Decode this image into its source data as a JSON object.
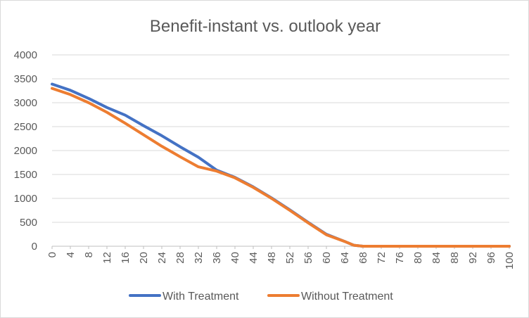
{
  "chart_data": {
    "type": "line",
    "title": "Benefit-instant vs. outlook year",
    "xlabel": "",
    "ylabel": "",
    "ylim": [
      0,
      4000
    ],
    "xlim": [
      0,
      100
    ],
    "y_ticks": [
      0,
      500,
      1000,
      1500,
      2000,
      2500,
      3000,
      3500,
      4000
    ],
    "x_tick_labels": [
      "0",
      "4",
      "8",
      "12",
      "16",
      "20",
      "24",
      "28",
      "32",
      "36",
      "40",
      "44",
      "48",
      "52",
      "56",
      "60",
      "64",
      "68",
      "72",
      "76",
      "80",
      "84",
      "88",
      "92",
      "96",
      "100"
    ],
    "grid": "horizontal",
    "legend": "bottom",
    "series": [
      {
        "name": "With Treatment",
        "color": "#4472C4",
        "points": [
          [
            0,
            3390
          ],
          [
            4,
            3260
          ],
          [
            8,
            3090
          ],
          [
            12,
            2900
          ],
          [
            16,
            2740
          ],
          [
            20,
            2520
          ],
          [
            24,
            2310
          ],
          [
            28,
            2080
          ],
          [
            32,
            1860
          ],
          [
            36,
            1590
          ],
          [
            40,
            1440
          ],
          [
            44,
            1240
          ],
          [
            48,
            1010
          ],
          [
            52,
            760
          ],
          [
            56,
            500
          ],
          [
            60,
            250
          ],
          [
            64,
            100
          ],
          [
            66,
            20
          ],
          [
            68,
            0
          ],
          [
            72,
            0
          ],
          [
            76,
            0
          ],
          [
            80,
            0
          ],
          [
            84,
            0
          ],
          [
            88,
            0
          ],
          [
            92,
            0
          ],
          [
            96,
            0
          ],
          [
            100,
            0
          ]
        ]
      },
      {
        "name": "Without Treatment",
        "color": "#ED7D31",
        "points": [
          [
            0,
            3300
          ],
          [
            4,
            3170
          ],
          [
            8,
            3000
          ],
          [
            12,
            2800
          ],
          [
            16,
            2570
          ],
          [
            20,
            2330
          ],
          [
            24,
            2090
          ],
          [
            28,
            1870
          ],
          [
            32,
            1660
          ],
          [
            36,
            1570
          ],
          [
            40,
            1430
          ],
          [
            44,
            1230
          ],
          [
            48,
            1000
          ],
          [
            52,
            750
          ],
          [
            56,
            490
          ],
          [
            60,
            240
          ],
          [
            64,
            100
          ],
          [
            66,
            20
          ],
          [
            68,
            0
          ],
          [
            72,
            0
          ],
          [
            76,
            0
          ],
          [
            80,
            0
          ],
          [
            84,
            0
          ],
          [
            88,
            0
          ],
          [
            92,
            0
          ],
          [
            96,
            0
          ],
          [
            100,
            0
          ]
        ]
      }
    ]
  }
}
